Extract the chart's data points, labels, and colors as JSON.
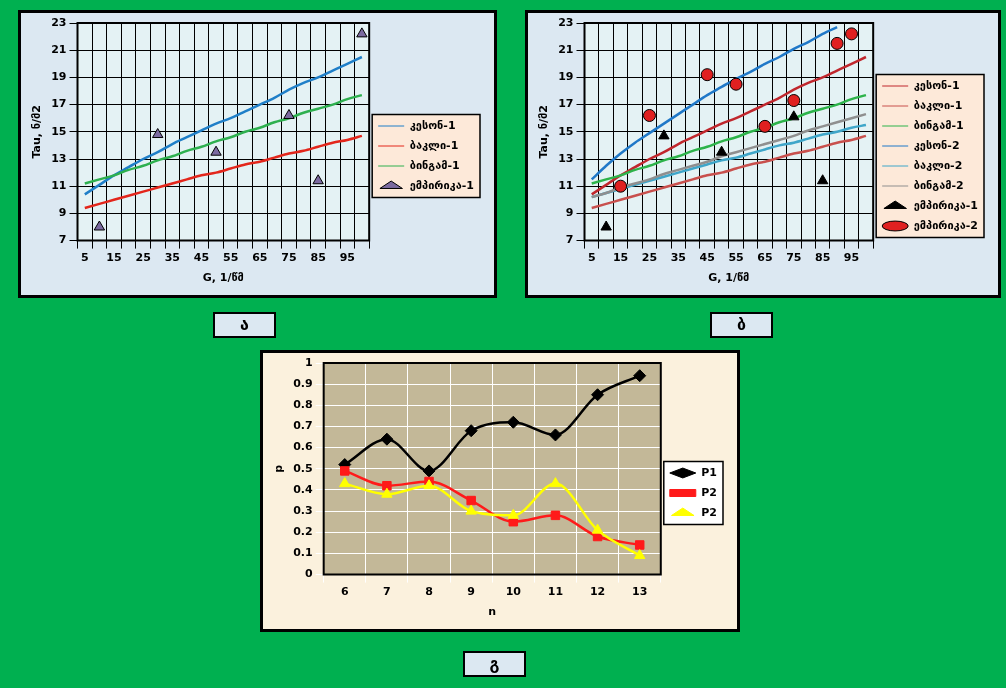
{
  "chart_data": [
    {
      "type": "line",
      "title": "ა",
      "xlabel": "G, 1/წმ",
      "ylabel": "Tau, ნ/მ2",
      "categories": [
        "5",
        null,
        "15",
        null,
        "25",
        null,
        "35",
        null,
        "45",
        null,
        "55",
        null,
        "65",
        null,
        "75",
        null,
        "85",
        null,
        "95",
        null
      ],
      "ylim": [
        7,
        23
      ],
      "yticks": [
        7,
        9,
        11,
        13,
        15,
        17,
        19,
        21,
        23
      ],
      "grid": true,
      "legend": "right",
      "series": [
        {
          "name": "კესონ-1",
          "color": "#1f7fc8",
          "values": [
            10.4,
            11.1,
            11.8,
            12.4,
            13.0,
            13.5,
            14.1,
            14.6,
            15.1,
            15.6,
            16.0,
            16.5,
            17.0,
            17.5,
            18.1,
            18.6,
            19.0,
            19.5,
            20.0,
            20.5
          ]
        },
        {
          "name": "ბაკლი-1",
          "color": "#e3261b",
          "values": [
            9.4,
            9.7,
            10.0,
            10.3,
            10.6,
            10.9,
            11.2,
            11.5,
            11.8,
            12.0,
            12.3,
            12.6,
            12.8,
            13.1,
            13.4,
            13.6,
            13.9,
            14.2,
            14.4,
            14.7
          ]
        },
        {
          "name": "ბინგამ-1",
          "color": "#2eb04f",
          "values": [
            11.2,
            11.5,
            11.8,
            12.2,
            12.5,
            12.9,
            13.2,
            13.6,
            13.9,
            14.3,
            14.6,
            15.0,
            15.3,
            15.7,
            16.0,
            16.4,
            16.7,
            17.0,
            17.4,
            17.7
          ]
        },
        {
          "name": "ემპირიკა-1",
          "type": "scatter",
          "marker": "triangle",
          "color": "#7b6aa0",
          "values": [
            null,
            8.0,
            null,
            null,
            null,
            14.8,
            null,
            null,
            null,
            13.5,
            null,
            null,
            null,
            null,
            16.2,
            null,
            11.4,
            null,
            null,
            22.2
          ]
        }
      ]
    },
    {
      "type": "line",
      "title": "ბ",
      "xlabel": "G, 1/წმ",
      "ylabel": "Tau, ნ/მ2",
      "categories": [
        "5",
        null,
        "15",
        null,
        "25",
        null,
        "35",
        null,
        "45",
        null,
        "55",
        null,
        "65",
        null,
        "75",
        null,
        "85",
        null,
        "95",
        null
      ],
      "ylim": [
        7,
        23
      ],
      "yticks": [
        7,
        9,
        11,
        13,
        15,
        17,
        19,
        21,
        23
      ],
      "grid": true,
      "legend": "right",
      "series": [
        {
          "name": "კესონ-1",
          "color": "#c0272d",
          "values": [
            10.4,
            11.1,
            11.8,
            12.4,
            13.0,
            13.5,
            14.1,
            14.6,
            15.1,
            15.6,
            16.0,
            16.5,
            17.0,
            17.5,
            18.1,
            18.6,
            19.0,
            19.5,
            20.0,
            20.5
          ]
        },
        {
          "name": "ბაკლი-1",
          "color": "#c8504d",
          "values": [
            9.4,
            9.7,
            10.0,
            10.3,
            10.6,
            10.9,
            11.2,
            11.5,
            11.8,
            12.0,
            12.3,
            12.6,
            12.8,
            13.1,
            13.4,
            13.6,
            13.9,
            14.2,
            14.4,
            14.7
          ]
        },
        {
          "name": "ბინგამ-1",
          "color": "#2db34a",
          "values": [
            11.2,
            11.5,
            11.8,
            12.2,
            12.5,
            12.9,
            13.2,
            13.6,
            13.9,
            14.3,
            14.6,
            15.0,
            15.3,
            15.7,
            16.0,
            16.4,
            16.7,
            17.0,
            17.4,
            17.7
          ]
        },
        {
          "name": "კესონ-2",
          "color": "#1f78c8",
          "values": [
            11.5,
            12.5,
            13.4,
            14.2,
            14.9,
            15.6,
            16.3,
            17.0,
            17.7,
            18.3,
            18.9,
            19.4,
            20.0,
            20.5,
            21.1,
            21.6,
            22.2,
            22.7,
            null,
            null
          ]
        },
        {
          "name": "ბაკლი-2",
          "color": "#3fa6c9",
          "values": [
            10.2,
            10.5,
            10.8,
            11.1,
            11.4,
            11.7,
            12.0,
            12.3,
            12.6,
            12.9,
            13.1,
            13.4,
            13.7,
            14.0,
            14.2,
            14.5,
            14.8,
            15.0,
            15.3,
            15.5
          ]
        },
        {
          "name": "ბინგამ-2",
          "color": "#8f8f8f",
          "values": [
            10.2,
            10.5,
            10.9,
            11.2,
            11.5,
            11.9,
            12.2,
            12.5,
            12.8,
            13.2,
            13.5,
            13.8,
            14.1,
            14.4,
            14.7,
            15.1,
            15.4,
            15.7,
            16.0,
            16.3
          ]
        },
        {
          "name": "ემპირიკა-1",
          "type": "scatter",
          "marker": "triangle",
          "color": "#000000",
          "values": [
            null,
            8.0,
            null,
            null,
            null,
            14.7,
            null,
            null,
            null,
            13.5,
            null,
            null,
            null,
            null,
            16.1,
            null,
            11.4,
            null,
            null,
            null
          ]
        },
        {
          "name": "ემპირიკა-2",
          "type": "scatter",
          "marker": "circle",
          "color": "#e02020",
          "values": [
            null,
            null,
            11.0,
            null,
            16.2,
            null,
            null,
            null,
            19.2,
            null,
            18.5,
            null,
            15.4,
            null,
            17.3,
            null,
            null,
            21.5,
            22.2,
            null
          ]
        }
      ]
    },
    {
      "type": "line",
      "title": "გ",
      "xlabel": "n",
      "ylabel": "p",
      "categories": [
        "6",
        "7",
        "8",
        "9",
        "10",
        "11",
        "12",
        "13"
      ],
      "ylim": [
        0,
        1
      ],
      "yticks": [
        0,
        0.1,
        0.2,
        0.3,
        0.4,
        0.5,
        0.6,
        0.7,
        0.8,
        0.9,
        1
      ],
      "grid": true,
      "legend": "right",
      "series": [
        {
          "name": "P1",
          "marker": "diamond",
          "color": "#000000",
          "values": [
            0.52,
            0.64,
            0.49,
            0.68,
            0.72,
            0.66,
            0.85,
            0.94
          ]
        },
        {
          "name": "P2",
          "marker": "square",
          "color": "#ff1a1a",
          "values": [
            0.49,
            0.42,
            0.44,
            0.35,
            0.25,
            0.28,
            0.18,
            0.14
          ]
        },
        {
          "name": "P2",
          "marker": "triangle",
          "color": "#ffff00",
          "values": [
            0.43,
            0.38,
            0.42,
            0.3,
            0.28,
            0.43,
            0.21,
            0.09
          ]
        }
      ]
    }
  ]
}
